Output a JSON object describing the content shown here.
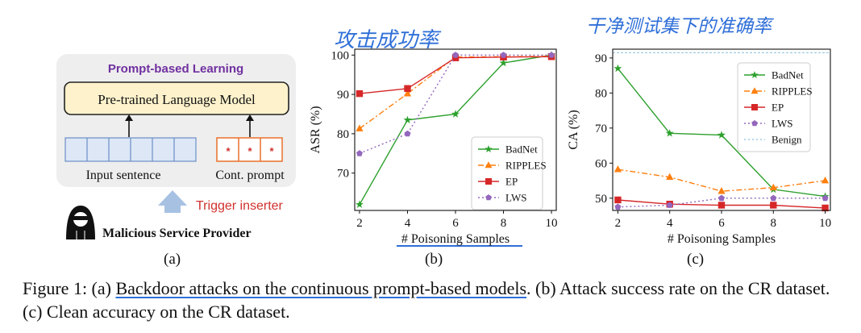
{
  "panel_a": {
    "box_title": "Prompt-based Learning",
    "model_label": "Pre-trained Language Model",
    "input_label": "Input sentence",
    "prompt_label": "Cont. prompt",
    "prompt_token": "*",
    "trigger_label": "Trigger inserter",
    "provider_label": "Malicious Service Provider",
    "sublabel": "(a)",
    "colors": {
      "title": "#7030a0",
      "model_fill": "#fdf2cc",
      "input_cells": "#dde7f6",
      "prompt_cells": "#e8702a",
      "trigger": "#d0312d",
      "arrow": "#a7c1e3"
    }
  },
  "annotations": {
    "asr_handwriting": "攻击成功率",
    "ca_handwriting": "干净测试集下的准确率"
  },
  "chart_data": [
    {
      "type": "line",
      "sublabel": "(b)",
      "xlabel": "# Poisoning Samples",
      "ylabel": "ASR (%)",
      "x": [
        2,
        4,
        6,
        8,
        10
      ],
      "xticks": [
        "2",
        "4",
        "6",
        "8",
        "10"
      ],
      "yticks": [
        70,
        80,
        90,
        100
      ],
      "xlim": [
        1.8,
        10.2
      ],
      "ylim": [
        60.5,
        101.5
      ],
      "legend_position": "lower-right",
      "series": [
        {
          "name": "BadNet",
          "values": [
            62,
            83.5,
            85,
            98,
            100
          ],
          "color": "#2ca02c",
          "marker": "star",
          "dash": "solid"
        },
        {
          "name": "RIPPLES",
          "values": [
            81.3,
            90.2,
            99.5,
            99.6,
            99.7
          ],
          "color": "#ff7f0e",
          "marker": "triangle",
          "dash": "dashdot"
        },
        {
          "name": "EP",
          "values": [
            90.2,
            91.5,
            99.3,
            99.5,
            99.6
          ],
          "color": "#d62728",
          "marker": "square",
          "dash": "solid"
        },
        {
          "name": "LWS",
          "values": [
            75,
            80,
            100,
            100,
            100
          ],
          "color": "#9467bd",
          "marker": "pentagon",
          "dash": "dotted"
        }
      ]
    },
    {
      "type": "line",
      "sublabel": "(c)",
      "xlabel": "# Poisoning Samples",
      "ylabel": "CA (%)",
      "x": [
        2,
        4,
        6,
        8,
        10
      ],
      "xticks": [
        "2",
        "4",
        "6",
        "8",
        "10"
      ],
      "yticks": [
        50,
        60,
        70,
        80,
        90
      ],
      "xlim": [
        1.8,
        10.2
      ],
      "ylim": [
        46.5,
        92.5
      ],
      "legend_position": "upper-right",
      "benign": {
        "name": "Benign",
        "value": 91.5,
        "color": "#9ecae1"
      },
      "series": [
        {
          "name": "BadNet",
          "values": [
            87,
            68.5,
            68,
            52.5,
            50.5
          ],
          "color": "#2ca02c",
          "marker": "star",
          "dash": "solid"
        },
        {
          "name": "RIPPLES",
          "values": [
            58.2,
            56,
            52,
            53,
            55
          ],
          "color": "#ff7f0e",
          "marker": "triangle",
          "dash": "dashdot"
        },
        {
          "name": "EP",
          "values": [
            49.5,
            48.3,
            48,
            48,
            47.2
          ],
          "color": "#d62728",
          "marker": "square",
          "dash": "solid"
        },
        {
          "name": "LWS",
          "values": [
            47.5,
            48,
            50,
            50,
            50
          ],
          "color": "#9467bd",
          "marker": "pentagon",
          "dash": "dotted"
        }
      ]
    }
  ],
  "caption": {
    "p1": "Figure 1: (a) ",
    "p2": "Backdoor attacks on the continuous prompt-based models",
    "p3": ". (b) Attack success rate on the CR dataset. (c) Clean accuracy on the CR dataset."
  }
}
